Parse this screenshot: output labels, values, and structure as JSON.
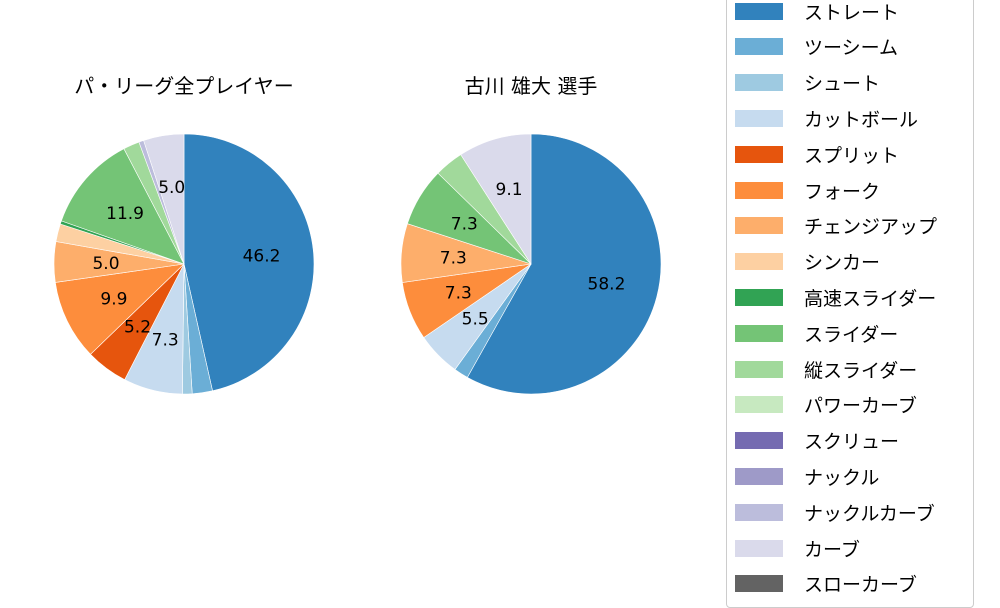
{
  "chart_data": [
    {
      "type": "pie",
      "title": "パ・リーグ全プレイヤー",
      "start_angle": 90,
      "direction": "clockwise",
      "categories": [
        "ストレート",
        "ツーシーム",
        "シュート",
        "カットボール",
        "スプリット",
        "フォーク",
        "チェンジアップ",
        "シンカー",
        "高速スライダー",
        "スライダー",
        "縦スライダー",
        "パワーカーブ",
        "スクリュー",
        "ナックル",
        "ナックルカーブ",
        "カーブ",
        "スローカーブ"
      ],
      "values": [
        46.2,
        2.5,
        1.2,
        7.3,
        5.2,
        9.9,
        5.0,
        2.2,
        0.4,
        11.9,
        2.0,
        0.0,
        0.0,
        0.0,
        0.6,
        5.0,
        0.0
      ],
      "labels_shown": [
        "46.2",
        "9.9",
        "11.9"
      ]
    },
    {
      "type": "pie",
      "title": "古川 雄大  選手",
      "start_angle": 90,
      "direction": "clockwise",
      "categories": [
        "ストレート",
        "ツーシーム",
        "シュート",
        "カットボール",
        "スプリット",
        "フォーク",
        "チェンジアップ",
        "シンカー",
        "高速スライダー",
        "スライダー",
        "縦スライダー",
        "パワーカーブ",
        "スクリュー",
        "ナックル",
        "ナックルカーブ",
        "カーブ",
        "スローカーブ"
      ],
      "values": [
        58.2,
        1.8,
        0.0,
        5.5,
        0.0,
        7.3,
        7.3,
        0.0,
        0.0,
        7.3,
        3.6,
        0.0,
        0.0,
        0.0,
        0.0,
        9.1,
        0.0
      ],
      "labels_shown": [
        "58.2",
        "5.5",
        "7.3",
        "7.3",
        "7.3",
        "9.1"
      ]
    }
  ],
  "titles": {
    "left": "パ・リーグ全プレイヤー",
    "right": "古川 雄大  選手"
  },
  "legend": {
    "position": "right",
    "items": [
      {
        "label": "ストレート",
        "color": "#3182bd"
      },
      {
        "label": "ツーシーム",
        "color": "#6baed6"
      },
      {
        "label": "シュート",
        "color": "#9ecae1"
      },
      {
        "label": "カットボール",
        "color": "#c6dbef"
      },
      {
        "label": "スプリット",
        "color": "#e6550d"
      },
      {
        "label": "フォーク",
        "color": "#fd8d3c"
      },
      {
        "label": "チェンジアップ",
        "color": "#fdae6b"
      },
      {
        "label": "シンカー",
        "color": "#fdd0a2"
      },
      {
        "label": "高速スライダー",
        "color": "#31a354"
      },
      {
        "label": "スライダー",
        "color": "#74c476"
      },
      {
        "label": "縦スライダー",
        "color": "#a1d99b"
      },
      {
        "label": "パワーカーブ",
        "color": "#c7e9c0"
      },
      {
        "label": "スクリュー",
        "color": "#756bb1"
      },
      {
        "label": "ナックル",
        "color": "#9e9ac8"
      },
      {
        "label": "ナックルカーブ",
        "color": "#bcbddc"
      },
      {
        "label": "カーブ",
        "color": "#dadaeb"
      },
      {
        "label": "スローカーブ",
        "color": "#636363"
      }
    ]
  }
}
